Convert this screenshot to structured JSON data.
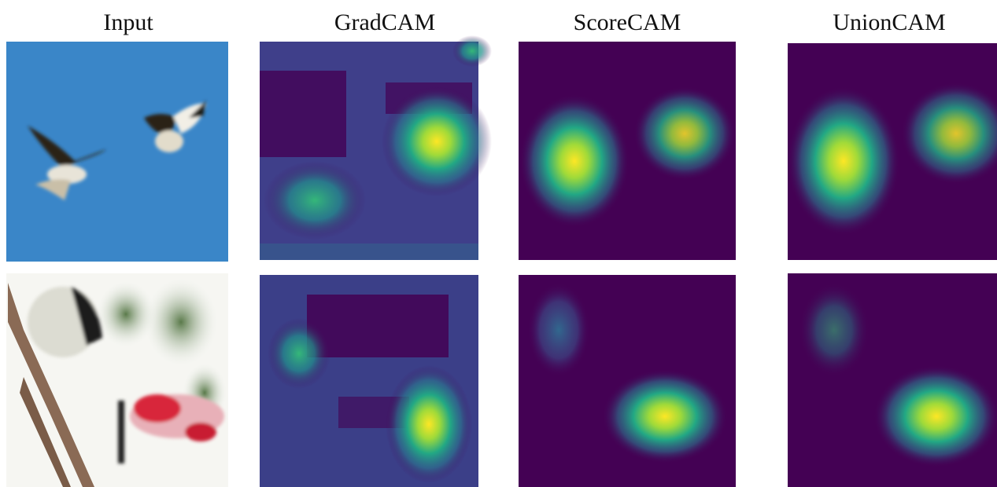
{
  "columns": [
    "Input",
    "GradCAM",
    "ScoreCAM",
    "UnionCAM"
  ]
}
